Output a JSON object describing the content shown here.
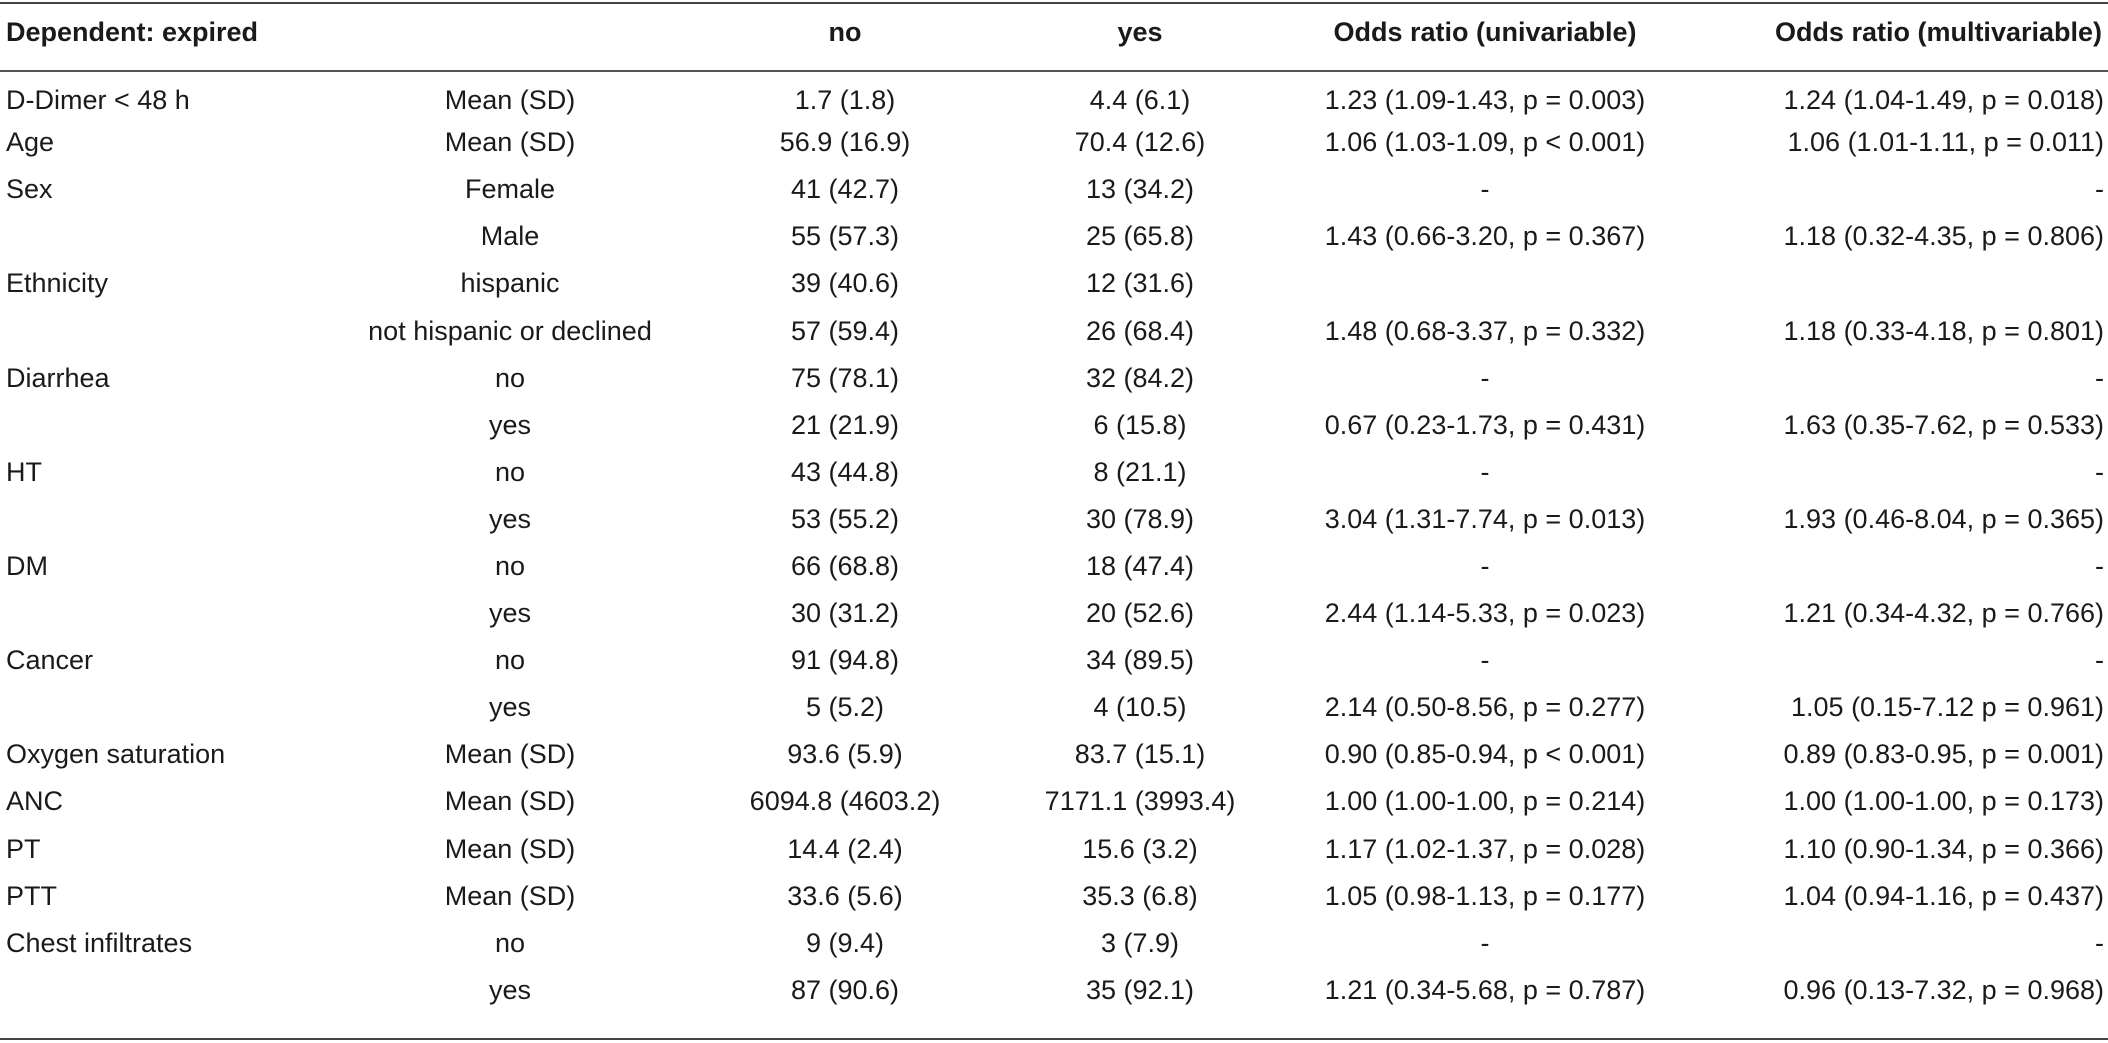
{
  "table": {
    "headers": [
      "Dependent: expired",
      "",
      "no",
      "yes",
      "Odds ratio (univariable)",
      "Odds ratio (multivariable)"
    ],
    "rows": [
      [
        "D-Dimer < 48 h",
        "Mean (SD)",
        "1.7 (1.8)",
        "4.4 (6.1)",
        "1.23 (1.09-1.43, p = 0.003)",
        "1.24 (1.04-1.49, p = 0.018)"
      ],
      [
        "Age",
        "Mean (SD)",
        "56.9 (16.9)",
        "70.4 (12.6)",
        "1.06 (1.03-1.09, p < 0.001)",
        "1.06 (1.01-1.11, p = 0.011)"
      ],
      [
        "Sex",
        "Female",
        "41 (42.7)",
        "13 (34.2)",
        "-",
        "-"
      ],
      [
        "",
        "Male",
        "55 (57.3)",
        "25 (65.8)",
        "1.43 (0.66-3.20, p = 0.367)",
        "1.18 (0.32-4.35, p = 0.806)"
      ],
      [
        "Ethnicity",
        "hispanic",
        "39 (40.6)",
        "12 (31.6)",
        "",
        ""
      ],
      [
        "",
        "not hispanic or declined",
        "57 (59.4)",
        "26 (68.4)",
        "1.48 (0.68-3.37, p = 0.332)",
        "1.18 (0.33-4.18, p = 0.801)"
      ],
      [
        "Diarrhea",
        "no",
        "75 (78.1)",
        "32 (84.2)",
        "-",
        "-"
      ],
      [
        "",
        "yes",
        "21 (21.9)",
        "6 (15.8)",
        "0.67 (0.23-1.73, p = 0.431)",
        "1.63 (0.35-7.62, p = 0.533)"
      ],
      [
        "HT",
        "no",
        "43 (44.8)",
        "8 (21.1)",
        "-",
        "-"
      ],
      [
        "",
        "yes",
        "53 (55.2)",
        "30 (78.9)",
        "3.04 (1.31-7.74, p = 0.013)",
        "1.93 (0.46-8.04, p = 0.365)"
      ],
      [
        "DM",
        "no",
        "66 (68.8)",
        "18 (47.4)",
        "-",
        "-"
      ],
      [
        "",
        "yes",
        "30 (31.2)",
        "20 (52.6)",
        "2.44 (1.14-5.33, p = 0.023)",
        "1.21 (0.34-4.32, p = 0.766)"
      ],
      [
        "Cancer",
        "no",
        "91 (94.8)",
        "34 (89.5)",
        "-",
        "-"
      ],
      [
        "",
        "yes",
        "5 (5.2)",
        "4 (10.5)",
        "2.14 (0.50-8.56, p = 0.277)",
        "1.05 (0.15-7.12 p = 0.961)"
      ],
      [
        "Oxygen saturation",
        "Mean (SD)",
        "93.6 (5.9)",
        "83.7 (15.1)",
        "0.90 (0.85-0.94, p < 0.001)",
        "0.89 (0.83-0.95, p = 0.001)"
      ],
      [
        "ANC",
        "Mean (SD)",
        "6094.8 (4603.2)",
        "7171.1 (3993.4)",
        "1.00 (1.00-1.00, p = 0.214)",
        "1.00 (1.00-1.00, p = 0.173)"
      ],
      [
        "PT",
        "Mean (SD)",
        "14.4 (2.4)",
        "15.6 (3.2)",
        "1.17 (1.02-1.37, p = 0.028)",
        "1.10 (0.90-1.34, p = 0.366)"
      ],
      [
        "PTT",
        "Mean (SD)",
        "33.6 (5.6)",
        "35.3 (6.8)",
        "1.05 (0.98-1.13, p = 0.177)",
        "1.04 (0.94-1.16, p = 0.437)"
      ],
      [
        "Chest infiltrates",
        "no",
        "9 (9.4)",
        "3 (7.9)",
        "-",
        "-"
      ],
      [
        "",
        "yes",
        "87 (90.6)",
        "35 (92.1)",
        "1.21 (0.34-5.68, p = 0.787)",
        "0.96 (0.13-7.32, p = 0.968)"
      ]
    ]
  }
}
